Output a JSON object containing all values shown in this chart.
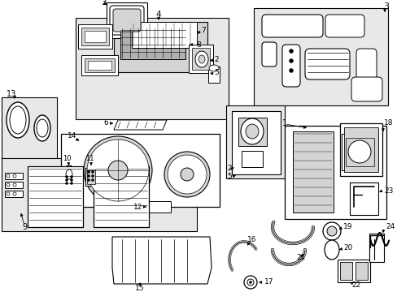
{
  "bg_color": "#ffffff",
  "fig_width": 4.89,
  "fig_height": 3.6,
  "dpi": 100,
  "gray_box": "#e8e8e8",
  "gray_mid": "#d4d4d4",
  "gray_dark": "#b0b0b0",
  "lc": "#1a1a1a"
}
